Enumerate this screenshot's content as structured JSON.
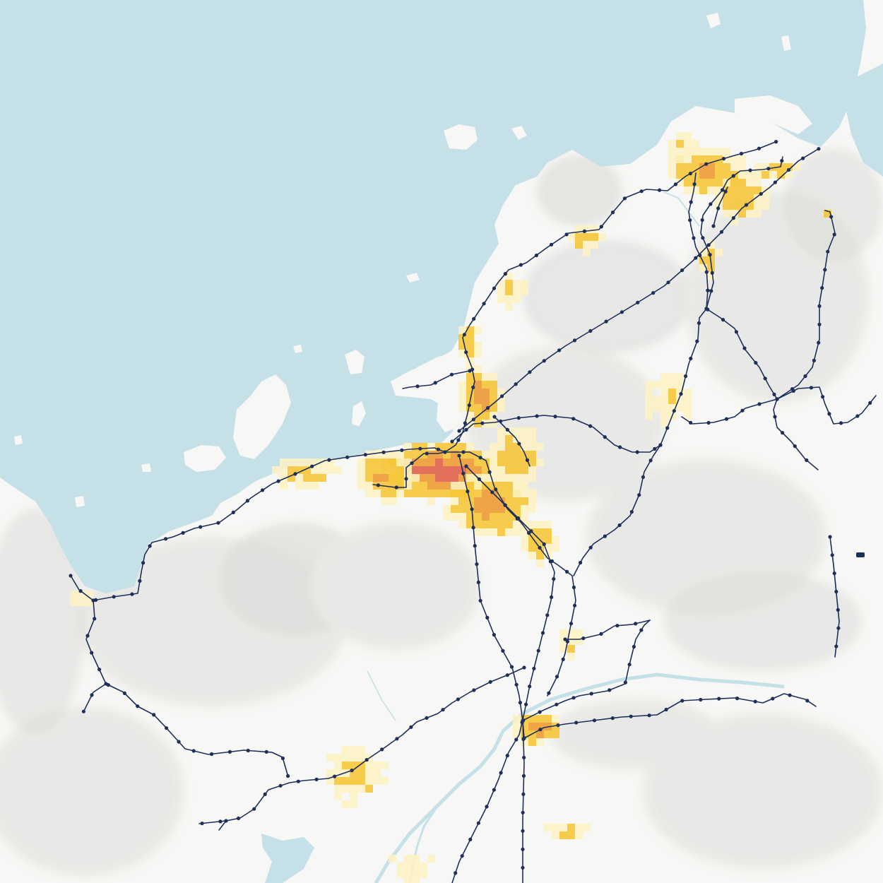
{
  "map": {
    "colors": {
      "land": "#f7f7f5",
      "terrain_shadow": "#d4d4d1",
      "terrain_light": "#e6e6e3",
      "water": "#c6e0e8",
      "river": "#c6e0e8",
      "rail": "#1e2f5a",
      "station": "#1e2f5a",
      "density_low": "#fdf2c3",
      "density_mid": "#f6c73a",
      "density_high": "#ee9a35",
      "density_peak": "#e0604b"
    },
    "layers": [
      "terrain",
      "sea",
      "rivers",
      "population-density",
      "rail-lines",
      "stations"
    ],
    "labels": []
  }
}
